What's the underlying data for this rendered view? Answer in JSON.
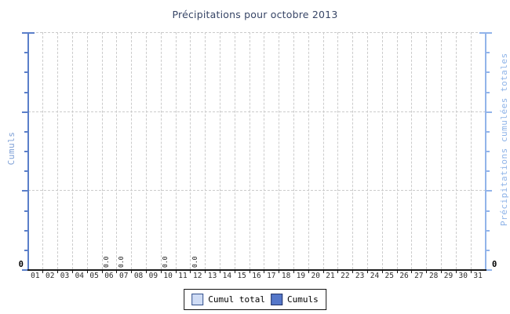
{
  "title": "Précipitations pour octobre 2013",
  "y_axis_left": {
    "label": "Cumuls",
    "tick_label": "0"
  },
  "y_axis_right": {
    "label": "Précipitations cumulées totales",
    "tick_label": "0"
  },
  "legend": {
    "items": [
      {
        "label": "Cumul total",
        "fill": "#cfdcf5",
        "border": "#33508c"
      },
      {
        "label": "Cumuls",
        "fill": "#5577c9",
        "border": "#223366"
      }
    ]
  },
  "colors": {
    "title": "#374566",
    "left_axis": "#5b7fc9",
    "right_axis": "#92b4ea",
    "left_axis_label": "#7d9fd6",
    "right_axis_label": "#8fb4e8",
    "grid": "#cbcbcb",
    "x_axis": "#1a1a1a",
    "day_label": "#2f2f2f"
  },
  "chart_data": {
    "type": "bar",
    "title": "Précipitations pour octobre 2013",
    "categories": [
      "01",
      "02",
      "03",
      "04",
      "05",
      "06",
      "07",
      "08",
      "09",
      "10",
      "11",
      "12",
      "13",
      "14",
      "15",
      "16",
      "17",
      "18",
      "19",
      "20",
      "21",
      "22",
      "23",
      "24",
      "25",
      "26",
      "27",
      "28",
      "29",
      "30",
      "31"
    ],
    "series": [
      {
        "name": "Cumul total",
        "values": [
          null,
          null,
          null,
          null,
          null,
          null,
          null,
          null,
          null,
          null,
          null,
          null,
          null,
          null,
          null,
          null,
          null,
          null,
          null,
          null,
          null,
          null,
          null,
          null,
          null,
          null,
          null,
          null,
          null,
          null,
          null
        ]
      },
      {
        "name": "Cumuls",
        "values": [
          null,
          null,
          null,
          null,
          null,
          0.0,
          0.0,
          null,
          null,
          0.0,
          null,
          0.0,
          null,
          null,
          null,
          null,
          null,
          null,
          null,
          null,
          null,
          null,
          null,
          null,
          null,
          null,
          null,
          null,
          null,
          null,
          null
        ]
      }
    ],
    "data_labels": [
      {
        "category": "06",
        "text": "0.0"
      },
      {
        "category": "07",
        "text": "0.0"
      },
      {
        "category": "10",
        "text": "0.0"
      },
      {
        "category": "12",
        "text": "0.0"
      }
    ],
    "xlabel": "",
    "ylabel_left": "Cumuls",
    "ylabel_right": "Précipitations cumulées totales",
    "y_tick_label_shown": "0",
    "ylim": [
      0,
      null
    ],
    "horizontal_gridlines": 3,
    "vertical_gridlines": "one-per-day-boundary",
    "grid_style": "dashed",
    "legend_position": "bottom-center"
  }
}
